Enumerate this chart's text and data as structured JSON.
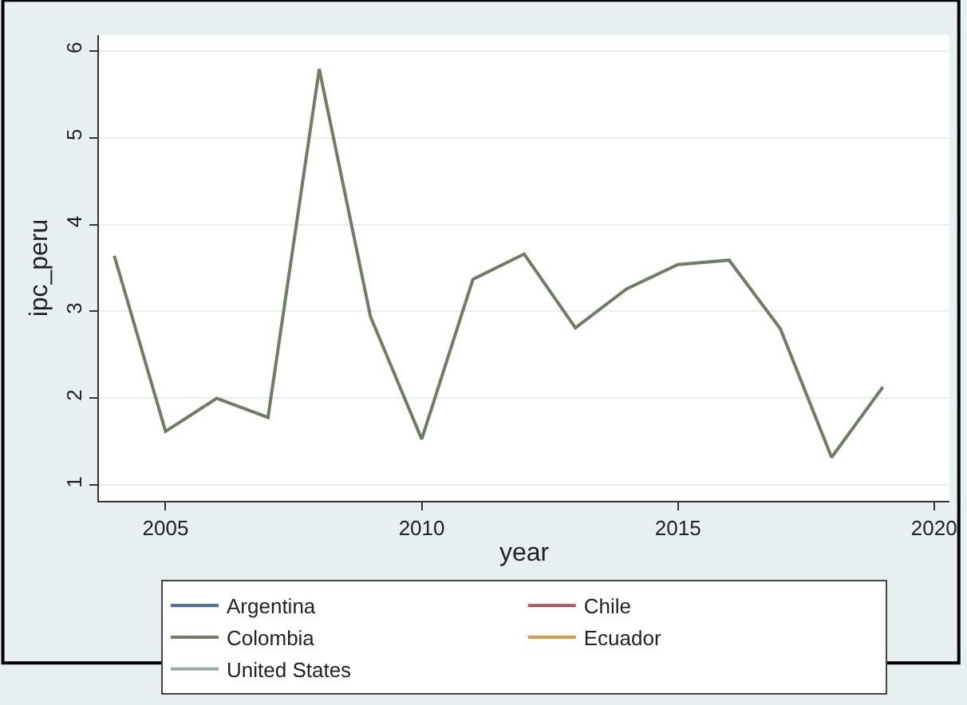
{
  "chart_data": {
    "type": "line",
    "xlabel": "year",
    "ylabel": "ipc_peru",
    "x": [
      2004,
      2005,
      2006,
      2007,
      2008,
      2009,
      2010,
      2011,
      2012,
      2013,
      2014,
      2015,
      2016,
      2017,
      2018,
      2019
    ],
    "series": [
      {
        "name": "Argentina",
        "color": "#4a6a9a",
        "values": [
          null,
          null,
          null,
          null,
          null,
          null,
          null,
          null,
          null,
          null,
          null,
          null,
          null,
          null,
          null,
          null
        ]
      },
      {
        "name": "Chile",
        "color": "#b05058",
        "values": [
          null,
          null,
          null,
          null,
          null,
          null,
          null,
          null,
          null,
          null,
          null,
          null,
          null,
          null,
          null,
          null
        ]
      },
      {
        "name": "Colombia",
        "color": "#6f7d65",
        "values": [
          3.64,
          1.62,
          2.0,
          1.78,
          5.79,
          2.94,
          1.53,
          3.37,
          3.66,
          2.81,
          3.26,
          3.54,
          3.59,
          2.8,
          1.32,
          2.13
        ]
      },
      {
        "name": "Ecuador",
        "color": "#e09a3c",
        "values": [
          null,
          null,
          null,
          null,
          null,
          null,
          null,
          null,
          null,
          null,
          null,
          null,
          null,
          null,
          null,
          null
        ]
      },
      {
        "name": "United States",
        "color": "#95aa9e",
        "values": [
          null,
          null,
          null,
          null,
          null,
          null,
          null,
          null,
          null,
          null,
          null,
          null,
          null,
          null,
          null,
          null
        ]
      }
    ],
    "xlim": [
      2003.7,
      2020.3
    ],
    "xticks": [
      2005,
      2010,
      2015,
      2020
    ],
    "ylim": [
      0.82,
      6.18
    ],
    "yticks": [
      1,
      2,
      3,
      4,
      5,
      6
    ],
    "grid": "y",
    "legend": "bottom",
    "marker": "none",
    "line_style": "solid"
  }
}
